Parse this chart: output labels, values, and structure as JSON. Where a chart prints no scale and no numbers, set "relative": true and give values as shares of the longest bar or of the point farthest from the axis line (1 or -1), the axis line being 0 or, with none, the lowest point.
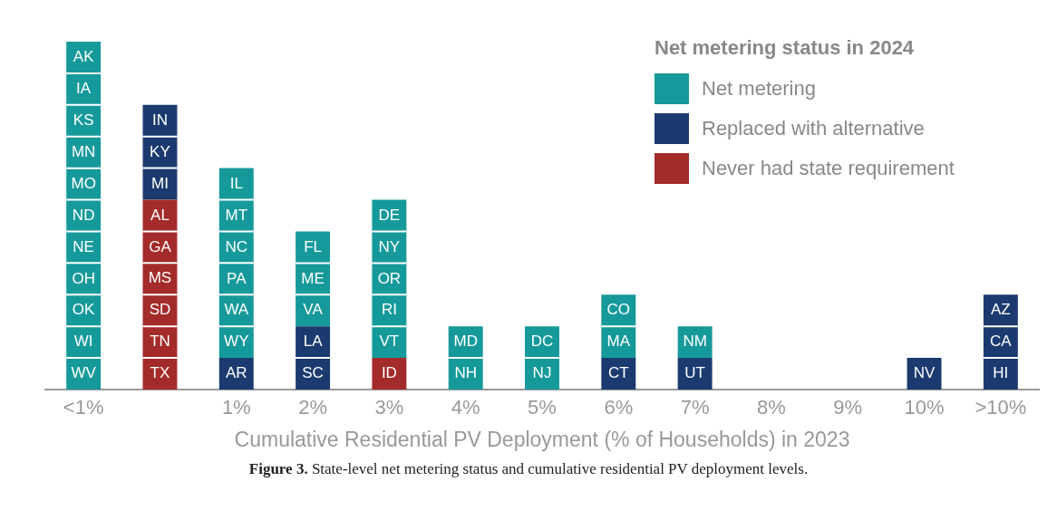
{
  "chart_data": {
    "type": "bar",
    "stacked": true,
    "relative": true,
    "grid": false,
    "legend": "top right",
    "xlabel": "Cumulative Residential PV Deployment (% of Households) in 2023",
    "legend_title": "Net metering status in 2024",
    "categories": [
      "<1%",
      null,
      "1%",
      "2%",
      "3%",
      "4%",
      "5%",
      "6%",
      "7%",
      "8%",
      "9%",
      "10%",
      ">10%"
    ],
    "series": [
      {
        "name": "Never had state requirement",
        "color": "#a32b2a",
        "values": [
          null,
          0.5455,
          null,
          null,
          0.0909,
          null,
          null,
          null,
          null,
          null,
          null,
          null,
          null
        ]
      },
      {
        "name": "Replaced with alternative",
        "color": "#1b3a6f",
        "values": [
          null,
          0.2727,
          0.0909,
          0.1818,
          null,
          null,
          null,
          0.0909,
          0.0909,
          null,
          null,
          0.0909,
          0.2727
        ]
      },
      {
        "name": "Net metering",
        "color": "#16999a",
        "values": [
          1,
          null,
          0.5455,
          0.2727,
          0.4545,
          0.1818,
          0.1818,
          0.1818,
          0.0909,
          null,
          null,
          null,
          null
        ]
      }
    ],
    "annotations": [
      "WV",
      "WI",
      "OK",
      "OH",
      "NE",
      "ND",
      "MO",
      "MN",
      "KS",
      "IA",
      "AK",
      "TX",
      "TN",
      "SD",
      "MS",
      "GA",
      "AL",
      "MI",
      "KY",
      "IN",
      "AR",
      "WY",
      "WA",
      "PA",
      "NC",
      "MT",
      "IL",
      "SC",
      "LA",
      "VA",
      "ME",
      "FL",
      "ID",
      "VT",
      "RI",
      "OR",
      "NY",
      "DE",
      "NH",
      "MD",
      "NJ",
      "DC",
      "CT",
      "MA",
      "CO",
      "UT",
      "NM",
      "NV",
      "HI",
      "CA",
      "AZ",
      "Figure 3. State-level net metering status and cumulative residential PV deployment levels."
    ]
  }
}
